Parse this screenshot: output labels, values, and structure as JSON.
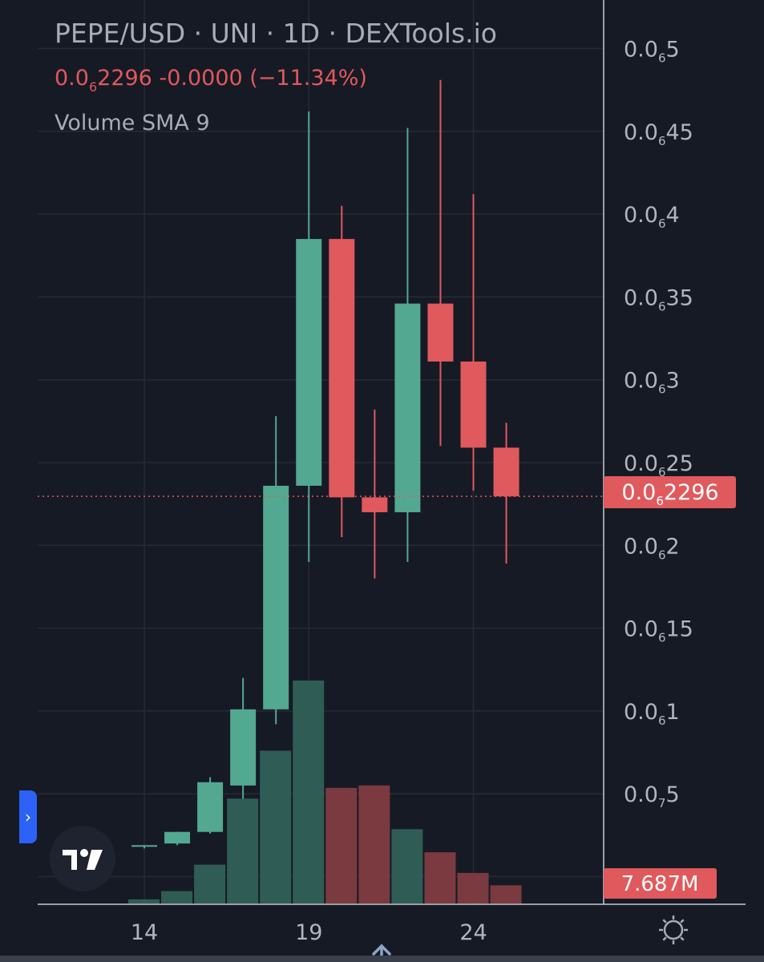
{
  "header": {
    "title": "PEPE/USD · UNI · 1D · DEXTools.io",
    "price_prefix": "0.0",
    "price_sub": "6",
    "price_suffix": "2296",
    "change": "-0.0000",
    "change_pct": "(−11.34%)",
    "indicator": "Volume SMA 9"
  },
  "icons": {
    "side_tab": "chevron-right-icon",
    "logo": "tradingview-logo-icon",
    "settings": "gear-icon",
    "scroll": "arrow-up-icon"
  },
  "colors": {
    "background": "#161a25",
    "grid": "#262a35",
    "up": "#53a891",
    "down": "#e0595c",
    "up_volume": "#2f5d55",
    "down_volume": "#7a3a40",
    "axis_text": "#b2b5be",
    "accent_blue": "#2c62f6"
  },
  "chart_data": {
    "type": "candlestick",
    "title": "PEPE/USD · UNI · 1D · DEXTools.io",
    "price_unit_note": "prices in units of 1e-6 USD (axis label 0.0₆X = 0.000000X)",
    "y_ticks": [
      {
        "label_prefix": "0.0",
        "label_sub": "6",
        "label_suffix": "5",
        "value": 0.5
      },
      {
        "label_prefix": "0.0",
        "label_sub": "6",
        "label_suffix": "45",
        "value": 0.45
      },
      {
        "label_prefix": "0.0",
        "label_sub": "6",
        "label_suffix": "4",
        "value": 0.4
      },
      {
        "label_prefix": "0.0",
        "label_sub": "6",
        "label_suffix": "35",
        "value": 0.35
      },
      {
        "label_prefix": "0.0",
        "label_sub": "6",
        "label_suffix": "3",
        "value": 0.3
      },
      {
        "label_prefix": "0.0",
        "label_sub": "6",
        "label_suffix": "25",
        "value": 0.25
      },
      {
        "label_prefix": "0.0",
        "label_sub": "6",
        "label_suffix": "2",
        "value": 0.2
      },
      {
        "label_prefix": "0.0",
        "label_sub": "6",
        "label_suffix": "15",
        "value": 0.15
      },
      {
        "label_prefix": "0.0",
        "label_sub": "6",
        "label_suffix": "1",
        "value": 0.1
      },
      {
        "label_prefix": "0.0",
        "label_sub": "7",
        "label_suffix": "5",
        "value": 0.05
      }
    ],
    "x_ticks": [
      {
        "label": "14",
        "index": 0
      },
      {
        "label": "19",
        "index": 5
      },
      {
        "label": "24",
        "index": 10
      }
    ],
    "last_price": {
      "prefix": "0.0",
      "sub": "6",
      "suffix": "2296",
      "value": 0.2296
    },
    "last_volume": "7.687M",
    "candles": [
      {
        "o": 0.018,
        "h": 0.019,
        "l": 0.017,
        "c": 0.019,
        "vol": 0.05
      },
      {
        "o": 0.02,
        "h": 0.027,
        "l": 0.019,
        "c": 0.027,
        "vol": 0.15
      },
      {
        "o": 0.027,
        "h": 0.06,
        "l": 0.026,
        "c": 0.057,
        "vol": 0.47
      },
      {
        "o": 0.055,
        "h": 0.12,
        "l": 0.047,
        "c": 0.101,
        "vol": 1.27
      },
      {
        "o": 0.101,
        "h": 0.278,
        "l": 0.092,
        "c": 0.236,
        "vol": 1.85
      },
      {
        "o": 0.236,
        "h": 0.462,
        "l": 0.19,
        "c": 0.385,
        "vol": 2.7
      },
      {
        "o": 0.385,
        "h": 0.405,
        "l": 0.205,
        "c": 0.229,
        "vol": 1.4
      },
      {
        "o": 0.229,
        "h": 0.282,
        "l": 0.18,
        "c": 0.22,
        "vol": 1.43
      },
      {
        "o": 0.22,
        "h": 0.452,
        "l": 0.19,
        "c": 0.346,
        "vol": 0.9
      },
      {
        "o": 0.346,
        "h": 0.481,
        "l": 0.26,
        "c": 0.311,
        "vol": 0.62
      },
      {
        "o": 0.311,
        "h": 0.412,
        "l": 0.233,
        "c": 0.259,
        "vol": 0.37
      },
      {
        "o": 0.259,
        "h": 0.274,
        "l": 0.189,
        "c": 0.2296,
        "vol": 0.22
      }
    ]
  }
}
